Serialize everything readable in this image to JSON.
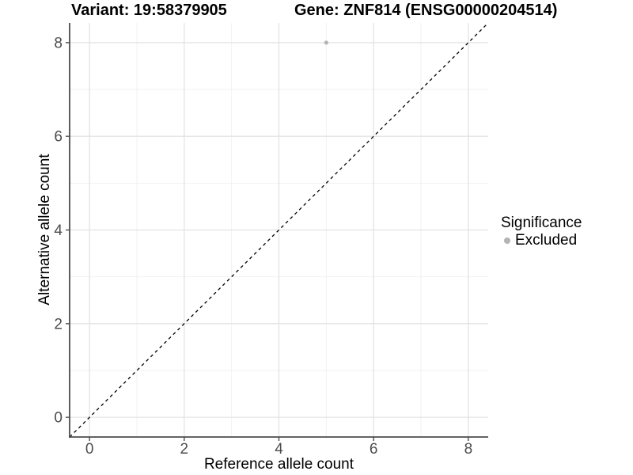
{
  "header": {
    "variant_title": "Variant: 19:58379905",
    "gene_title": "Gene: ZNF814 (ENSG00000204514)"
  },
  "legend": {
    "title": "Significance",
    "items": [
      {
        "label": "Excluded",
        "color": "#b4b4b4"
      }
    ]
  },
  "chart_data": {
    "type": "scatter",
    "xlabel": "Reference allele count",
    "ylabel": "Alternative allele count",
    "xlim": [
      -0.42,
      8.42
    ],
    "ylim": [
      -0.42,
      8.42
    ],
    "x_ticks": [
      0,
      2,
      4,
      6,
      8
    ],
    "y_ticks": [
      0,
      2,
      4,
      6,
      8
    ],
    "x_minor": [
      1,
      3,
      5,
      7
    ],
    "y_minor": [
      1,
      3,
      5,
      7
    ],
    "grid": true,
    "legend_position": "right",
    "series": [
      {
        "name": "Excluded",
        "color": "#b4b4b4",
        "points": [
          {
            "x": 5,
            "y": 8
          }
        ]
      }
    ],
    "reference_line": {
      "type": "identity",
      "equation": "y = x",
      "style": "dashed",
      "color": "#000000"
    }
  },
  "colors": {
    "background": "#ffffff",
    "grid_major": "#e3e3e3",
    "grid_minor": "#f1f1f1",
    "axis_line": "#4d4d4d",
    "tick_text": "#4d4d4d",
    "title_text": "#000000",
    "point": "#b4b4b4"
  }
}
